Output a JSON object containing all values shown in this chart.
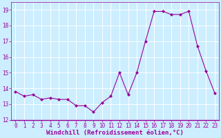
{
  "x": [
    0,
    1,
    2,
    3,
    4,
    5,
    6,
    7,
    8,
    9,
    10,
    11,
    12,
    13,
    14,
    15,
    16,
    17,
    18,
    19,
    20,
    21,
    22,
    23
  ],
  "y": [
    13.8,
    13.5,
    13.6,
    13.3,
    13.4,
    13.3,
    13.3,
    12.9,
    12.9,
    12.5,
    13.1,
    13.5,
    15.0,
    13.6,
    15.0,
    17.0,
    18.9,
    18.9,
    18.7,
    18.7,
    18.9,
    16.7,
    15.1,
    13.7
  ],
  "line_color": "#990099",
  "marker": "D",
  "markersize": 2,
  "bg_color": "#cceeff",
  "grid_color": "#ffffff",
  "xlabel": "Windchill (Refroidissement éolien,°C)",
  "xlabel_color": "#990099",
  "xlim": [
    -0.5,
    23.5
  ],
  "ylim": [
    12,
    19.5
  ],
  "yticks": [
    12,
    13,
    14,
    15,
    16,
    17,
    18,
    19
  ],
  "xticks": [
    0,
    1,
    2,
    3,
    4,
    5,
    6,
    7,
    8,
    9,
    10,
    11,
    12,
    13,
    14,
    15,
    16,
    17,
    18,
    19,
    20,
    21,
    22,
    23
  ],
  "tick_labelsize": 5.5,
  "xlabel_fontsize": 6.5,
  "linewidth": 0.8
}
